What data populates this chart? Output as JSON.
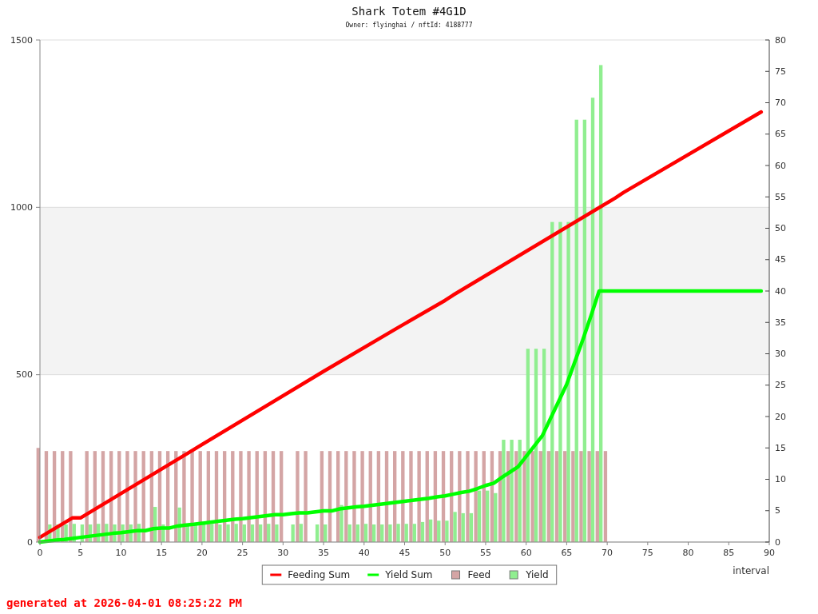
{
  "chart_data": {
    "type": "bar",
    "title": "Shark Totem #4G1D",
    "subtitle": "Owner: flyinghai / nftId: 4188777",
    "xlabel": "interval",
    "x": [
      0,
      1,
      2,
      3,
      4,
      5,
      6,
      7,
      8,
      9,
      10,
      11,
      12,
      13,
      14,
      15,
      16,
      17,
      18,
      19,
      20,
      21,
      22,
      23,
      24,
      25,
      26,
      27,
      28,
      29,
      30,
      31,
      32,
      33,
      34,
      35,
      36,
      37,
      38,
      39,
      40,
      41,
      42,
      43,
      44,
      45,
      46,
      47,
      48,
      49,
      50,
      51,
      52,
      53,
      54,
      55,
      56,
      57,
      58,
      59,
      60,
      61,
      62,
      63,
      64,
      65,
      66,
      67,
      68,
      69,
      70
    ],
    "xlim": [
      0,
      90
    ],
    "xticks": [
      0,
      5,
      10,
      15,
      20,
      25,
      30,
      35,
      40,
      45,
      50,
      55,
      60,
      65,
      70,
      75,
      80,
      85,
      90
    ],
    "ylim": [
      0,
      1500
    ],
    "yticks": [
      0,
      500,
      1000,
      1500
    ],
    "y2lim": [
      0,
      80
    ],
    "y2ticks": [
      0,
      5,
      10,
      15,
      20,
      25,
      30,
      35,
      40,
      45,
      50,
      55,
      60,
      65,
      70,
      75,
      80
    ],
    "grid": "y",
    "legend": "bottom",
    "bands": [
      {
        "axis": "y",
        "from": 500,
        "to": 1000,
        "color": "#f3f3f3"
      }
    ],
    "series": [
      {
        "name": "Feeding Sum",
        "type": "line",
        "color": "#ff0000",
        "x": [
          0,
          4,
          5,
          18,
          35,
          44,
          50,
          51,
          71,
          72,
          89
        ],
        "values": [
          14,
          72,
          72,
          262,
          510,
          638,
          722,
          738,
          1028,
          1044,
          1285
        ]
      },
      {
        "name": "Yield Sum",
        "type": "line",
        "color": "#00ff00",
        "x": [
          0,
          1,
          2,
          3,
          4,
          5,
          6,
          7,
          8,
          9,
          10,
          11,
          12,
          13,
          14,
          15,
          16,
          17,
          18,
          19,
          20,
          21,
          22,
          23,
          24,
          25,
          26,
          27,
          28,
          29,
          30,
          31,
          32,
          33,
          34,
          35,
          36,
          37,
          38,
          39,
          40,
          41,
          42,
          43,
          44,
          45,
          46,
          47,
          48,
          49,
          50,
          51,
          52,
          53,
          54,
          55,
          56,
          57,
          58,
          59,
          60,
          61,
          62,
          63,
          64,
          65,
          66,
          67,
          68,
          69,
          89
        ],
        "values": [
          0,
          3,
          6,
          8,
          11,
          14,
          17,
          20,
          23,
          26,
          28,
          31,
          34,
          34,
          40,
          42,
          42,
          48,
          51,
          53,
          56,
          59,
          62,
          65,
          68,
          70,
          73,
          76,
          79,
          82,
          82,
          85,
          87,
          87,
          90,
          93,
          93,
          99,
          102,
          105,
          107,
          110,
          113,
          116,
          119,
          122,
          125,
          128,
          131,
          135,
          138,
          143,
          148,
          152,
          160,
          169,
          176,
          193,
          209,
          225,
          256,
          287,
          318,
          369,
          420,
          471,
          538,
          605,
          676,
          750,
          750
        ]
      },
      {
        "name": "Feed",
        "axis": "y2",
        "color": "#d4a5a5",
        "values": [
          15,
          14.5,
          14.5,
          14.5,
          14.5,
          null,
          14.5,
          14.5,
          14.5,
          14.5,
          14.5,
          14.5,
          14.5,
          14.5,
          14.5,
          14.5,
          14.5,
          14.5,
          14.5,
          14.5,
          14.5,
          14.5,
          14.5,
          14.5,
          14.5,
          14.5,
          14.5,
          14.5,
          14.5,
          14.5,
          14.5,
          null,
          14.5,
          14.5,
          null,
          14.5,
          14.5,
          14.5,
          14.5,
          14.5,
          14.5,
          14.5,
          14.5,
          14.5,
          14.5,
          14.5,
          14.5,
          14.5,
          14.5,
          14.5,
          14.5,
          14.5,
          14.5,
          14.5,
          14.5,
          14.5,
          14.5,
          14.5,
          14.5,
          14.5,
          14.5,
          14.5,
          14.5,
          14.5,
          14.5,
          14.5,
          14.5,
          14.5,
          14.5,
          14.5,
          14.5
        ]
      },
      {
        "name": "Yield",
        "axis": "y2",
        "color": "#90ee90",
        "values": [
          null,
          2.8,
          2.8,
          2.8,
          2.9,
          2.8,
          2.8,
          2.9,
          2.9,
          2.8,
          2.8,
          2.8,
          2.9,
          null,
          5.6,
          2.8,
          null,
          5.5,
          2.6,
          2.8,
          2.9,
          2.9,
          2.8,
          2.8,
          2.9,
          2.8,
          2.8,
          2.8,
          2.9,
          2.8,
          null,
          2.8,
          2.9,
          null,
          2.8,
          2.8,
          null,
          5.9,
          2.8,
          2.8,
          2.9,
          2.8,
          2.8,
          2.8,
          2.9,
          2.9,
          2.9,
          3.2,
          3.6,
          3.4,
          3.4,
          4.8,
          4.6,
          4.6,
          8.2,
          8.2,
          7.8,
          16.3,
          16.3,
          16.3,
          30.8,
          30.8,
          30.8,
          51,
          51,
          51,
          67.3,
          67.3,
          70.8,
          76,
          null
        ]
      }
    ],
    "annotations": [
      "generated at 2026-04-01 08:25:22 PM"
    ]
  }
}
